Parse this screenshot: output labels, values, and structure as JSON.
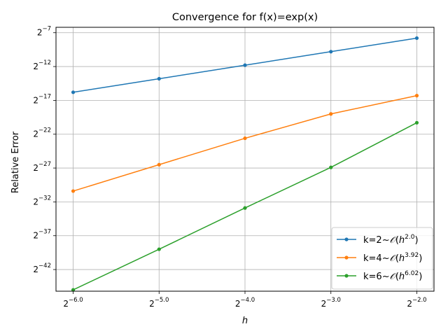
{
  "chart_data": {
    "type": "line",
    "title": "Convergence for f(x)=exp(x)",
    "xlabel": "h",
    "ylabel": "Relative Error",
    "x_scale": "log2",
    "y_scale": "log2",
    "grid": true,
    "legend_position": "lower-right",
    "x_exponents": [
      -6.0,
      -5.0,
      -4.0,
      -3.0,
      -2.0
    ],
    "x_tick_labels": [
      "-6.0",
      "-5.0",
      "-4.0",
      "-3.0",
      "-2.0"
    ],
    "y_tick_exponents": [
      -7,
      -12,
      -17,
      -22,
      -27,
      -32,
      -37,
      -42
    ],
    "xlim_exponent": [
      -6.2,
      -1.8
    ],
    "ylim_exponent": [
      -45.2,
      -6.2
    ],
    "series": [
      {
        "name": "k=2",
        "order": "2.0",
        "color": "#1f77b4",
        "y_exponents": [
          -15.8,
          -13.8,
          -11.8,
          -9.8,
          -7.8
        ]
      },
      {
        "name": "k=4",
        "order": "3.92",
        "color": "#ff7f0e",
        "y_exponents": [
          -30.4,
          -26.5,
          -22.6,
          -19.0,
          -16.3
        ]
      },
      {
        "name": "k=6",
        "order": "6.02",
        "color": "#2ca02c",
        "y_exponents": [
          -45.0,
          -39.0,
          -32.9,
          -26.9,
          -20.3
        ]
      }
    ]
  }
}
